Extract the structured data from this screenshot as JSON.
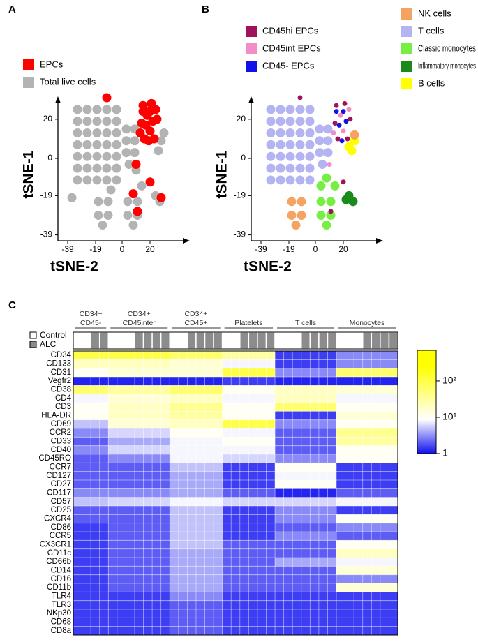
{
  "chart_data": [
    {
      "type": "scatter",
      "panel": "A",
      "xlabel": "tSNE-2",
      "ylabel": "tSNE-1",
      "xlim": [
        -46,
        47
      ],
      "ylim": [
        -42,
        31
      ],
      "xticks": [
        -39,
        -19,
        0,
        20
      ],
      "yticks": [
        20,
        0,
        -19,
        -39
      ],
      "series": [
        {
          "name": "EPCs",
          "color": "#ff0000",
          "x": [
            15,
            21,
            14,
            25,
            16,
            23,
            18,
            24,
            13,
            20,
            20,
            17,
            22,
            19,
            15,
            -11,
            11,
            10,
            20,
            8,
            28
          ],
          "y": [
            27,
            28,
            18,
            20,
            10,
            10,
            22,
            25,
            13,
            14,
            24,
            17,
            19,
            9,
            24,
            31,
            -27,
            -3,
            -12,
            -18,
            -20
          ]
        },
        {
          "name": "Total live cells",
          "color": "#b3b3b3",
          "x": [
            -32,
            -25,
            -18,
            -11,
            -4,
            -32,
            -25,
            -18,
            -11,
            -4,
            -32,
            -25,
            -18,
            -11,
            -4,
            -32,
            -25,
            -18,
            -11,
            -4,
            -32,
            -25,
            -18,
            -11,
            -4,
            -32,
            -25,
            -18,
            -11,
            -4,
            -32,
            -25,
            -18,
            -11,
            -4,
            3,
            9,
            3,
            9,
            3,
            9,
            5,
            10,
            -17,
            -10,
            -17,
            -10,
            -14,
            4,
            11,
            4,
            11,
            8,
            24,
            27,
            26,
            28,
            -36,
            -8,
            14,
            30
          ],
          "y": [
            25,
            25,
            25,
            25,
            25,
            19,
            19,
            19,
            19,
            19,
            13,
            13,
            13,
            13,
            13,
            7,
            7,
            7,
            7,
            7,
            1,
            1,
            1,
            1,
            1,
            -5,
            -5,
            -5,
            -5,
            -5,
            -11,
            -11,
            -11,
            -11,
            -11,
            15,
            15,
            9,
            9,
            3,
            3,
            -3,
            -6,
            -22,
            -22,
            -29,
            -29,
            -34,
            -22,
            -22,
            -29,
            -29,
            -34,
            -19,
            -22,
            4,
            9,
            -20,
            -16,
            -14,
            13
          ]
        }
      ]
    },
    {
      "type": "scatter",
      "panel": "B",
      "xlabel": "tSNE-2",
      "ylabel": "tSNE-1",
      "xlim": [
        -46,
        47
      ],
      "ylim": [
        -42,
        31
      ],
      "xticks": [
        -39,
        -19,
        0,
        20
      ],
      "yticks": [
        20,
        0,
        -19,
        -39
      ],
      "series": [
        {
          "name": "CD45hi EPCs",
          "color": "#a0135a",
          "x": [
            15,
            21,
            14,
            25,
            16,
            23,
            -11,
            11,
            20
          ],
          "y": [
            27,
            28,
            18,
            20,
            10,
            10,
            31,
            -27,
            -12
          ]
        },
        {
          "name": "CD45int EPCs",
          "color": "#f48cc8",
          "x": [
            18,
            24,
            13,
            20,
            10
          ],
          "y": [
            22,
            25,
            13,
            14,
            -3
          ]
        },
        {
          "name": "CD45- EPCs",
          "color": "#1010e8",
          "x": [
            20,
            17,
            22,
            19,
            15
          ],
          "y": [
            24,
            17,
            19,
            9,
            24
          ]
        },
        {
          "name": "NK cells",
          "color": "#f4a460",
          "x": [
            -17,
            -10,
            -17,
            -10,
            -14,
            28
          ],
          "y": [
            -22,
            -22,
            -29,
            -29,
            -34,
            12
          ]
        },
        {
          "name": "T cells",
          "color": "#b4b4f2",
          "x": [
            -32,
            -25,
            -18,
            -11,
            -4,
            -32,
            -25,
            -18,
            -11,
            -4,
            -32,
            -25,
            -18,
            -11,
            -4,
            -32,
            -25,
            -18,
            -11,
            -4,
            -32,
            -25,
            -18,
            -11,
            -4,
            -32,
            -25,
            -18,
            -11,
            -4,
            -32,
            -25,
            -18,
            -11,
            -4,
            3,
            9,
            3,
            9,
            3,
            9,
            5
          ],
          "y": [
            25,
            25,
            25,
            25,
            25,
            19,
            19,
            19,
            19,
            19,
            13,
            13,
            13,
            13,
            13,
            7,
            7,
            7,
            7,
            7,
            1,
            1,
            1,
            1,
            1,
            -5,
            -5,
            -5,
            -5,
            -5,
            -11,
            -11,
            -11,
            -11,
            -11,
            15,
            15,
            9,
            9,
            3,
            3,
            -3
          ]
        },
        {
          "name": "Classic monocytes",
          "color": "#77ee44",
          "x": [
            4,
            11,
            4,
            11,
            8,
            4,
            8,
            14
          ],
          "y": [
            -22,
            -22,
            -29,
            -29,
            -34,
            -14,
            -10,
            -14
          ]
        },
        {
          "name": "Inflammatory monocytes",
          "color": "#1a8a1a",
          "x": [
            24,
            27,
            22
          ],
          "y": [
            -19,
            -22,
            -21
          ]
        },
        {
          "name": "B cells",
          "color": "#ffff00",
          "x": [
            26,
            28,
            24
          ],
          "y": [
            4,
            9,
            6
          ]
        }
      ]
    },
    {
      "type": "heatmap",
      "panel": "C",
      "groups": [
        {
          "label": [
            "CD34+",
            "CD45-"
          ],
          "alc": [
            false,
            false,
            true,
            true
          ]
        },
        {
          "label": [
            "CD34+",
            "CD45inter"
          ],
          "alc": [
            false,
            false,
            false,
            true,
            true,
            true,
            true
          ]
        },
        {
          "label": [
            "CD34+",
            "CD45+"
          ],
          "alc": [
            false,
            false,
            true,
            true,
            true,
            true
          ]
        },
        {
          "label": [
            "Platelets"
          ],
          "alc": [
            false,
            false,
            true,
            true,
            true,
            true
          ]
        },
        {
          "label": [
            "T cells"
          ],
          "alc": [
            false,
            false,
            false,
            true,
            true,
            true,
            true
          ]
        },
        {
          "label": [
            "Monocytes"
          ],
          "alc": [
            false,
            false,
            false,
            true,
            true,
            true,
            true
          ]
        }
      ],
      "legend": [
        "Control",
        "ALC"
      ],
      "legend_colors": [
        "#ffffff",
        "#8c8c8c"
      ],
      "rows": [
        "CD34",
        "CD133",
        "CD31",
        "Vegfr2",
        "CD38",
        "CD4",
        "CD3",
        "HLA-DR",
        "CD69",
        "CCR2",
        "CD33",
        "CD40",
        "CD45RO",
        "CCR7",
        "CD127",
        "CD27",
        "CD117",
        "CD57",
        "CD25",
        "CXCR4",
        "CD86",
        "CCR5",
        "CX3CR1",
        "CD11c",
        "CD66b",
        "CD14",
        "CD16",
        "CD11b",
        "TLR4",
        "TLR3",
        "NKp30",
        "CD68",
        "CD8a"
      ],
      "values": [
        [
          100,
          100,
          60,
          30,
          1.5,
          3
        ],
        [
          20,
          20,
          15,
          8,
          1.5,
          3
        ],
        [
          10,
          15,
          15,
          100,
          3,
          60
        ],
        [
          1.2,
          1.2,
          1.2,
          1.5,
          1.2,
          1.2
        ],
        [
          60,
          30,
          60,
          10,
          20,
          15
        ],
        [
          8,
          15,
          20,
          8,
          20,
          8
        ],
        [
          10,
          20,
          40,
          10,
          60,
          10
        ],
        [
          10,
          20,
          30,
          10,
          1.5,
          15
        ],
        [
          5,
          15,
          20,
          100,
          3,
          10
        ],
        [
          3,
          6,
          10,
          8,
          2,
          40
        ],
        [
          2,
          4,
          8,
          10,
          2,
          30
        ],
        [
          3,
          6,
          8,
          8,
          2,
          10
        ],
        [
          2,
          3,
          8,
          6,
          3,
          10
        ],
        [
          2,
          2,
          5,
          1.5,
          10,
          1.5
        ],
        [
          2,
          2,
          4,
          1.5,
          8,
          1.5
        ],
        [
          2,
          2,
          4,
          1.5,
          10,
          1.5
        ],
        [
          3,
          3,
          4,
          2,
          1.2,
          2
        ],
        [
          5,
          6,
          8,
          6,
          6,
          8
        ],
        [
          2,
          2,
          5,
          1.5,
          3,
          1.5
        ],
        [
          2,
          2,
          5,
          1.5,
          3,
          10
        ],
        [
          1.5,
          2,
          5,
          1.5,
          2,
          3
        ],
        [
          1.5,
          2,
          5,
          1.5,
          3,
          2
        ],
        [
          1.5,
          2,
          5,
          2,
          2,
          10
        ],
        [
          1.5,
          2,
          4,
          2,
          2,
          20
        ],
        [
          1.5,
          2,
          4,
          2,
          4,
          8
        ],
        [
          1.5,
          2,
          4,
          2,
          2,
          15
        ],
        [
          1.5,
          2,
          4,
          2,
          2,
          3
        ],
        [
          1.5,
          2,
          4,
          2,
          2,
          15
        ],
        [
          1.5,
          1.5,
          3,
          1.5,
          1.5,
          1.5
        ],
        [
          1.5,
          1.5,
          2,
          1.5,
          1.5,
          1.5
        ],
        [
          1.5,
          1.5,
          2,
          1.5,
          1.5,
          1.5
        ],
        [
          1.5,
          1.5,
          2,
          1.5,
          1.5,
          1.5
        ],
        [
          1.5,
          1.5,
          2,
          1.5,
          1.5,
          1.5
        ]
      ],
      "colorbar": {
        "log": true,
        "lim": [
          1,
          700
        ],
        "ticks": [
          1,
          {
            "value": 10,
            "label": "10¹"
          },
          {
            "value": 100,
            "label": "10²"
          }
        ],
        "colors": [
          "#1010f0",
          "#ffffff",
          "#ffff00"
        ]
      }
    }
  ]
}
